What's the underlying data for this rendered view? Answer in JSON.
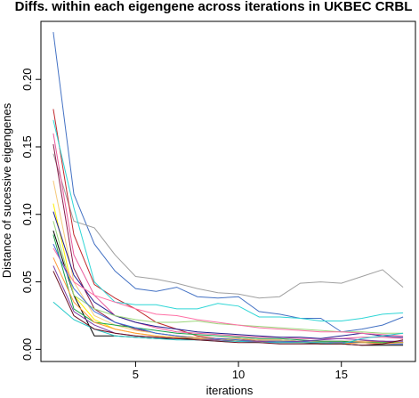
{
  "chart_data": {
    "type": "line",
    "title": "Diffs. within each eigengene across iterations in UKBEC CRBL",
    "xlabel": "iterations",
    "ylabel": "Distance of sucessive eigengenes",
    "xlim": [
      0.4,
      18.6
    ],
    "ylim": [
      -0.009,
      0.243
    ],
    "xticks": [
      5,
      10,
      15
    ],
    "yticks": [
      0.0,
      0.05,
      0.1,
      0.15,
      0.2
    ],
    "ytick_labels": [
      "0.00",
      "0.05",
      "0.10",
      "0.15",
      "0.20"
    ],
    "grid": false,
    "legend": "none",
    "x": [
      1,
      2,
      3,
      4,
      5,
      6,
      7,
      8,
      9,
      10,
      11,
      12,
      13,
      14,
      15,
      16,
      17,
      18
    ],
    "series": [
      {
        "color": "#4472c4",
        "values": [
          0.235,
          0.115,
          0.078,
          0.058,
          0.045,
          0.043,
          0.046,
          0.039,
          0.038,
          0.039,
          0.028,
          0.026,
          0.023,
          0.023,
          0.013,
          0.015,
          0.018,
          0.024
        ]
      },
      {
        "color": "#a0a0a0",
        "values": [
          0.145,
          0.095,
          0.09,
          0.07,
          0.054,
          0.052,
          0.049,
          0.045,
          0.042,
          0.041,
          0.038,
          0.039,
          0.049,
          0.05,
          0.049,
          0.054,
          0.059,
          0.046
        ]
      },
      {
        "color": "#c0282c",
        "values": [
          0.178,
          0.085,
          0.048,
          0.038,
          0.03,
          0.02,
          0.015,
          0.01,
          0.008,
          0.008,
          0.006,
          0.006,
          0.005,
          0.005,
          0.005,
          0.006,
          0.006,
          0.005
        ]
      },
      {
        "color": "#2fd6d6",
        "values": [
          0.17,
          0.105,
          0.05,
          0.035,
          0.033,
          0.033,
          0.03,
          0.03,
          0.034,
          0.032,
          0.024,
          0.024,
          0.023,
          0.021,
          0.021,
          0.023,
          0.026,
          0.027
        ]
      },
      {
        "color": "#e85a9c",
        "values": [
          0.16,
          0.07,
          0.04,
          0.025,
          0.02,
          0.016,
          0.013,
          0.012,
          0.011,
          0.01,
          0.009,
          0.009,
          0.008,
          0.008,
          0.008,
          0.009,
          0.009,
          0.008
        ]
      },
      {
        "color": "#8b1a4a",
        "values": [
          0.152,
          0.06,
          0.03,
          0.02,
          0.015,
          0.012,
          0.01,
          0.009,
          0.008,
          0.008,
          0.007,
          0.007,
          0.006,
          0.006,
          0.006,
          0.006,
          0.006,
          0.005
        ]
      },
      {
        "color": "#f5c97a",
        "values": [
          0.125,
          0.05,
          0.025,
          0.018,
          0.014,
          0.012,
          0.01,
          0.009,
          0.008,
          0.008,
          0.007,
          0.007,
          0.006,
          0.006,
          0.006,
          0.006,
          0.005,
          0.005
        ]
      },
      {
        "color": "#fff200",
        "values": [
          0.108,
          0.04,
          0.022,
          0.015,
          0.012,
          0.01,
          0.009,
          0.008,
          0.007,
          0.007,
          0.006,
          0.006,
          0.006,
          0.005,
          0.005,
          0.005,
          0.005,
          0.005
        ]
      },
      {
        "color": "#1f1f8f",
        "values": [
          0.102,
          0.055,
          0.035,
          0.025,
          0.02,
          0.017,
          0.015,
          0.013,
          0.012,
          0.011,
          0.01,
          0.009,
          0.009,
          0.008,
          0.01,
          0.012,
          0.01,
          0.009
        ]
      },
      {
        "color": "#000000",
        "values": [
          0.088,
          0.04,
          0.01,
          0.01,
          0.009,
          0.008,
          0.008,
          0.008,
          0.007,
          0.006,
          0.006,
          0.005,
          0.005,
          0.004,
          0.004,
          0.003,
          0.003,
          0.003
        ]
      },
      {
        "color": "#1aa34a",
        "values": [
          0.085,
          0.03,
          0.02,
          0.018,
          0.016,
          0.014,
          0.012,
          0.011,
          0.01,
          0.009,
          0.008,
          0.008,
          0.007,
          0.006,
          0.006,
          0.005,
          0.005,
          0.005
        ]
      },
      {
        "color": "#9bd67a",
        "values": [
          0.095,
          0.04,
          0.03,
          0.025,
          0.022,
          0.02,
          0.02,
          0.021,
          0.019,
          0.018,
          0.017,
          0.016,
          0.015,
          0.014,
          0.013,
          0.013,
          0.012,
          0.012
        ]
      },
      {
        "color": "#ff6fa5",
        "values": [
          0.075,
          0.05,
          0.04,
          0.035,
          0.03,
          0.026,
          0.025,
          0.022,
          0.02,
          0.018,
          0.016,
          0.015,
          0.014,
          0.013,
          0.013,
          0.012,
          0.011,
          0.01
        ]
      },
      {
        "color": "#3a6bd8",
        "values": [
          0.078,
          0.045,
          0.028,
          0.02,
          0.016,
          0.012,
          0.01,
          0.008,
          0.008,
          0.007,
          0.006,
          0.006,
          0.006,
          0.005,
          0.005,
          0.005,
          0.004,
          0.004
        ]
      },
      {
        "color": "#ff9a3c",
        "values": [
          0.068,
          0.035,
          0.02,
          0.015,
          0.012,
          0.01,
          0.009,
          0.008,
          0.007,
          0.006,
          0.006,
          0.005,
          0.005,
          0.005,
          0.004,
          0.005,
          0.004,
          0.005
        ]
      },
      {
        "color": "#7a3fa8",
        "values": [
          0.062,
          0.028,
          0.018,
          0.012,
          0.01,
          0.009,
          0.008,
          0.007,
          0.007,
          0.006,
          0.006,
          0.005,
          0.006,
          0.007,
          0.008,
          0.007,
          0.006,
          0.006
        ]
      },
      {
        "color": "#25c9c9",
        "values": [
          0.035,
          0.022,
          0.015,
          0.01,
          0.009,
          0.008,
          0.007,
          0.007,
          0.006,
          0.006,
          0.005,
          0.005,
          0.005,
          0.005,
          0.004,
          0.008,
          0.01,
          0.012
        ]
      },
      {
        "color": "#6b1020",
        "values": [
          0.058,
          0.025,
          0.015,
          0.012,
          0.01,
          0.009,
          0.008,
          0.007,
          0.006,
          0.005,
          0.005,
          0.004,
          0.004,
          0.004,
          0.004,
          0.003,
          0.004,
          0.007
        ]
      }
    ]
  }
}
